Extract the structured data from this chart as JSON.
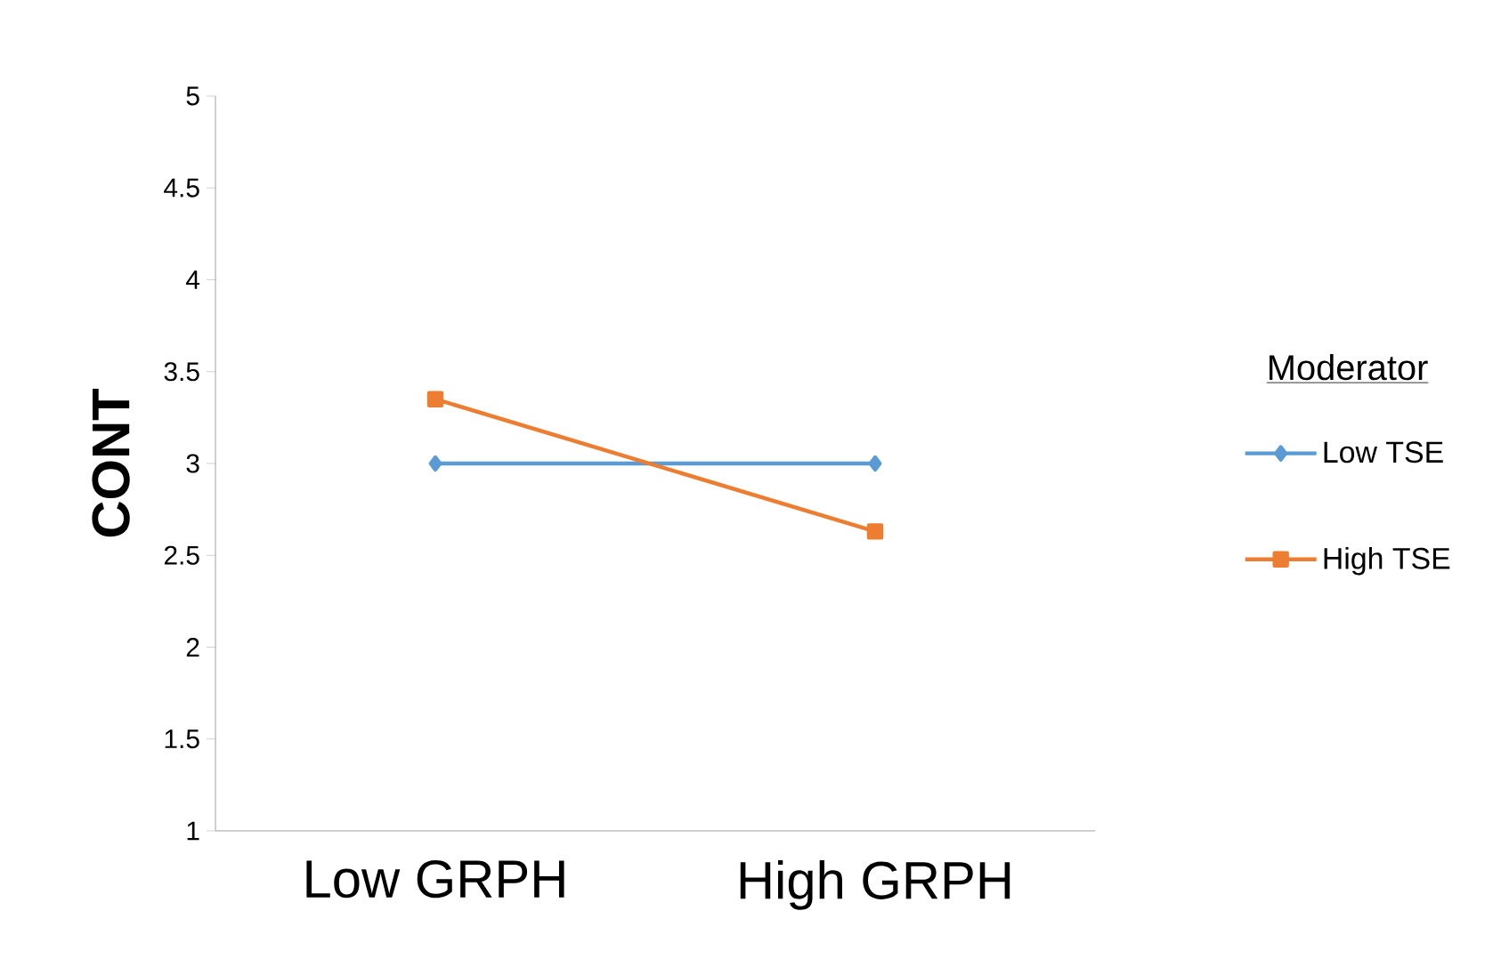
{
  "chart_data": {
    "type": "line",
    "ylabel": "CONT",
    "legend_title": "Moderator",
    "categories": [
      "Low GRPH",
      "High GRPH"
    ],
    "series": [
      {
        "name": "Low TSE",
        "color": "#5b9bd5",
        "values": [
          3.0,
          3.0
        ],
        "marker": "diamond"
      },
      {
        "name": "High TSE",
        "color": "#ed7d31",
        "values": [
          3.35,
          2.63
        ],
        "marker": "square"
      }
    ],
    "ylim": [
      1,
      5
    ],
    "yticks": [
      1,
      1.5,
      2,
      2.5,
      3,
      3.5,
      4,
      4.5,
      5
    ],
    "grid": false,
    "legend": "right",
    "line_style": "solid"
  }
}
